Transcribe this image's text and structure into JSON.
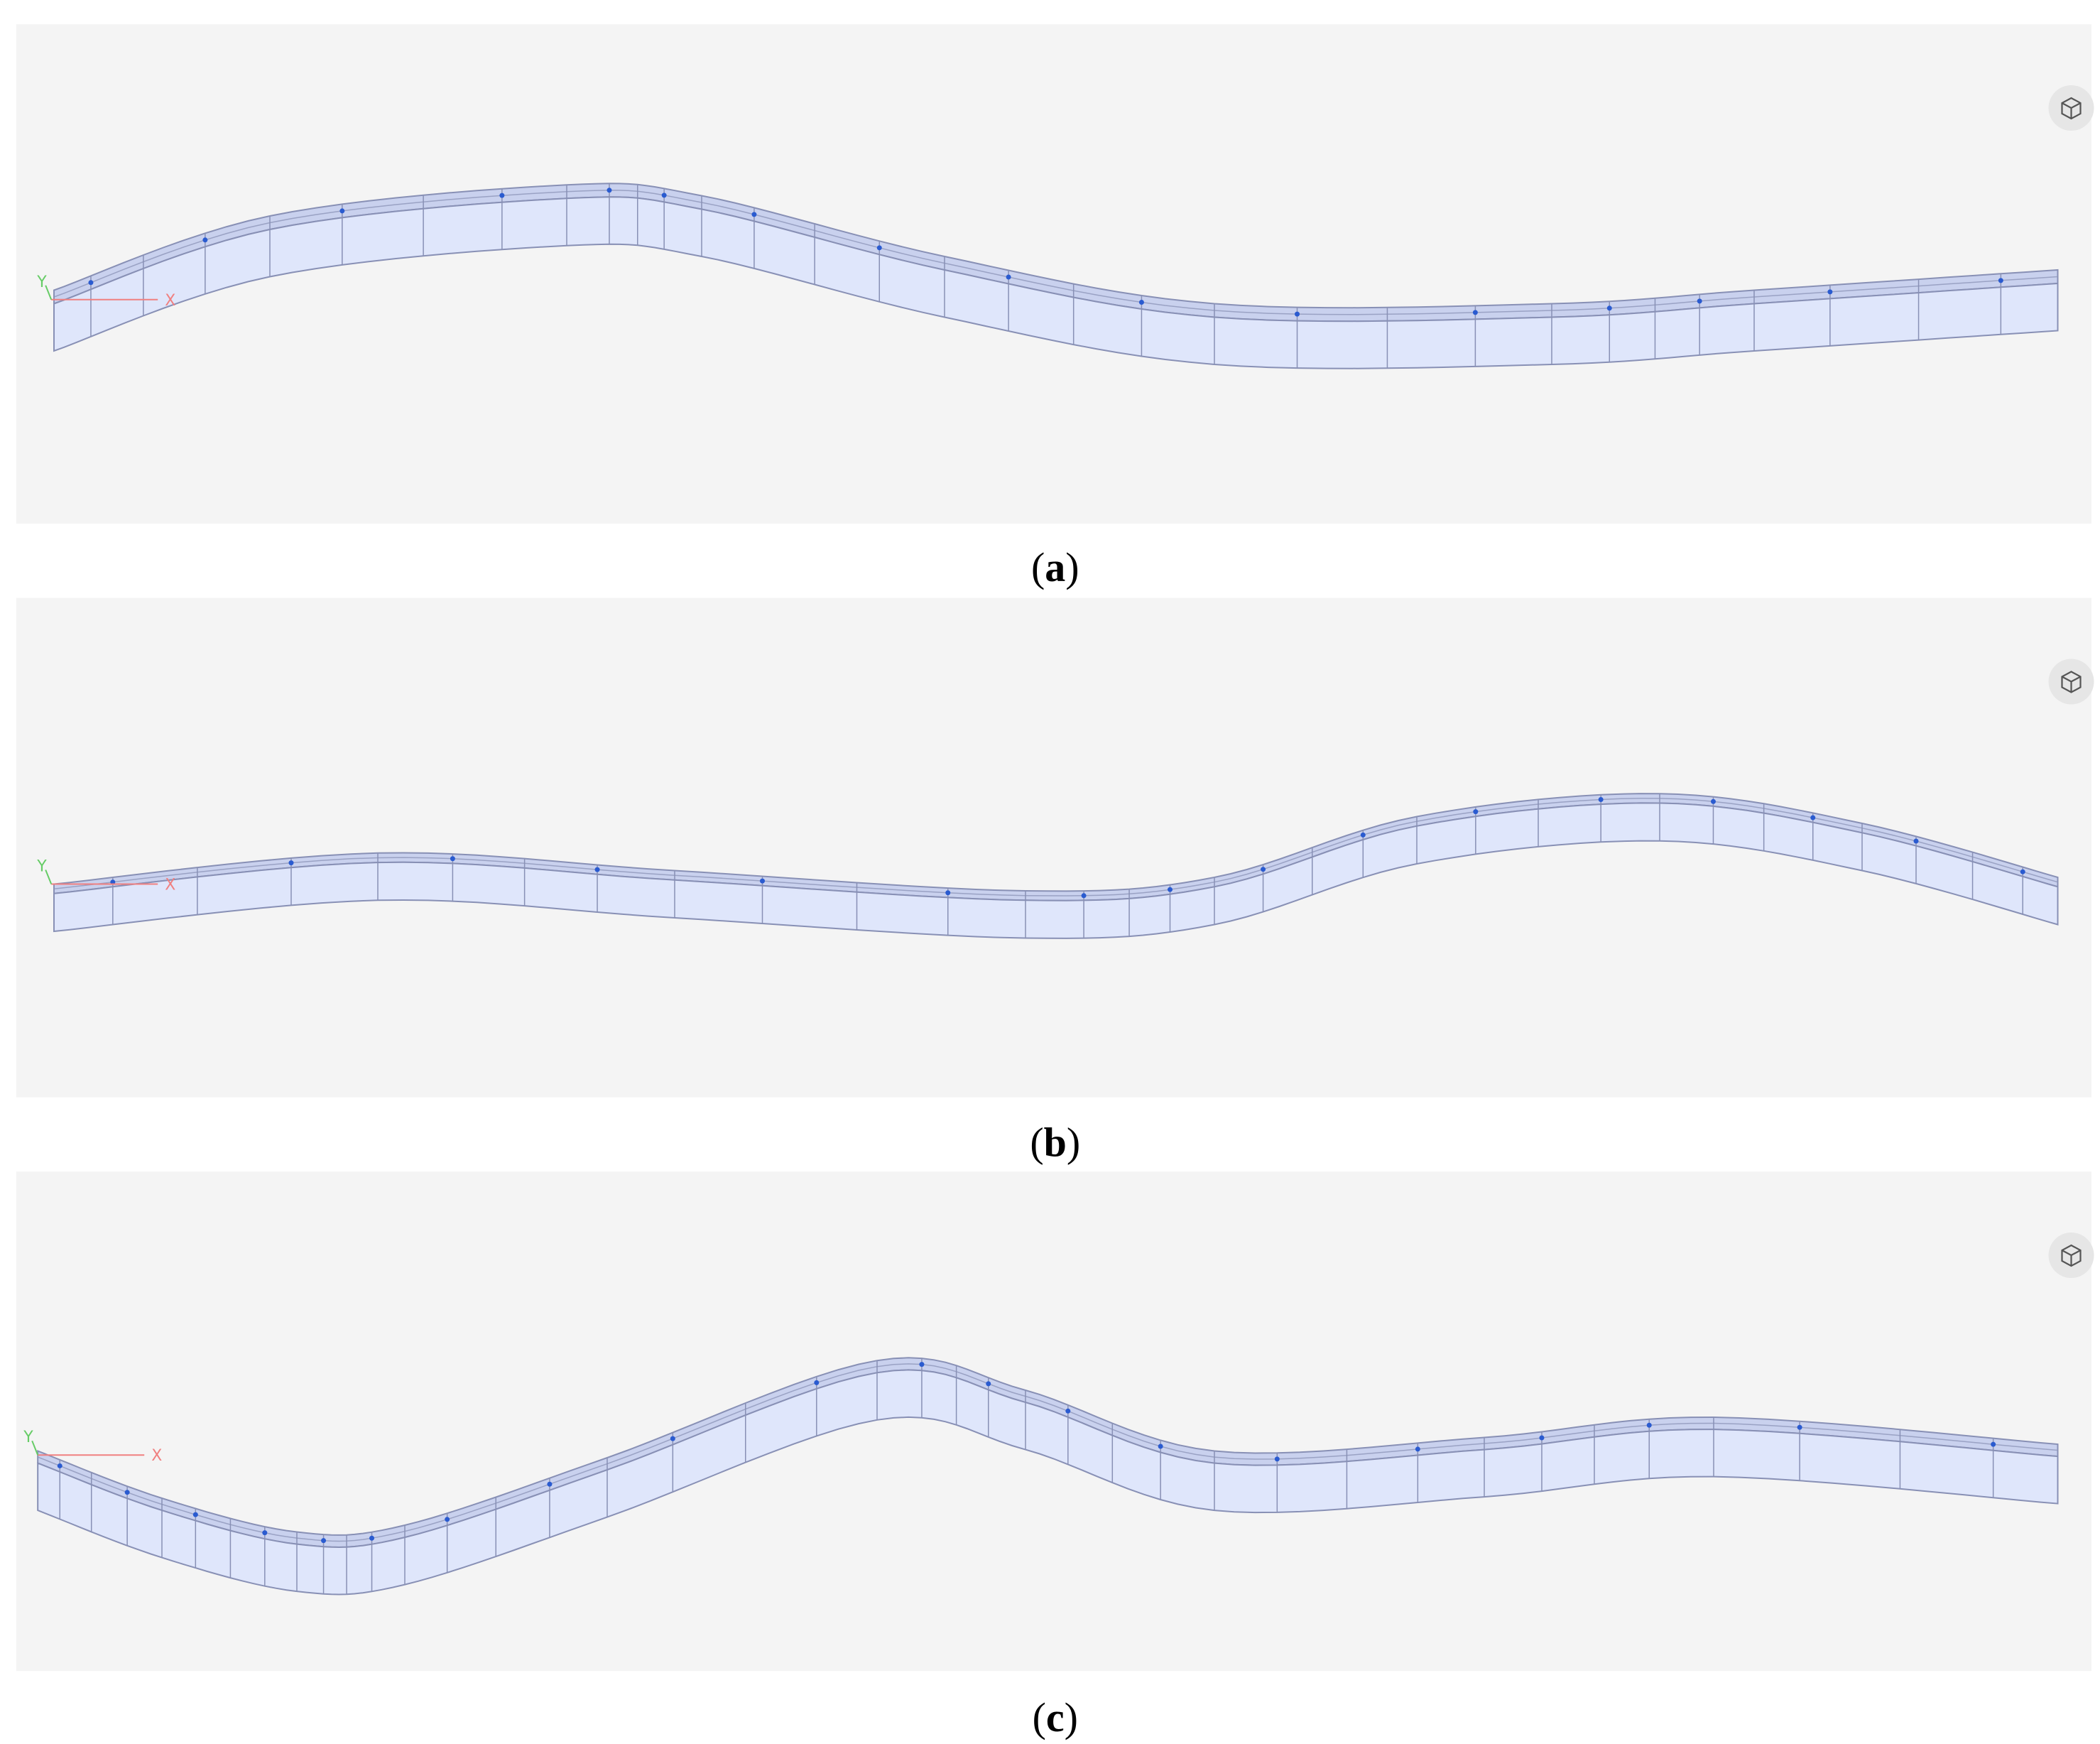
{
  "panels": [
    {
      "caption": "(a)",
      "axis_x": "X",
      "axis_y": "Y"
    },
    {
      "caption": "(b)",
      "axis_x": "X",
      "axis_y": "Y"
    },
    {
      "caption": "(c)",
      "axis_x": "X",
      "axis_y": "Y"
    }
  ]
}
